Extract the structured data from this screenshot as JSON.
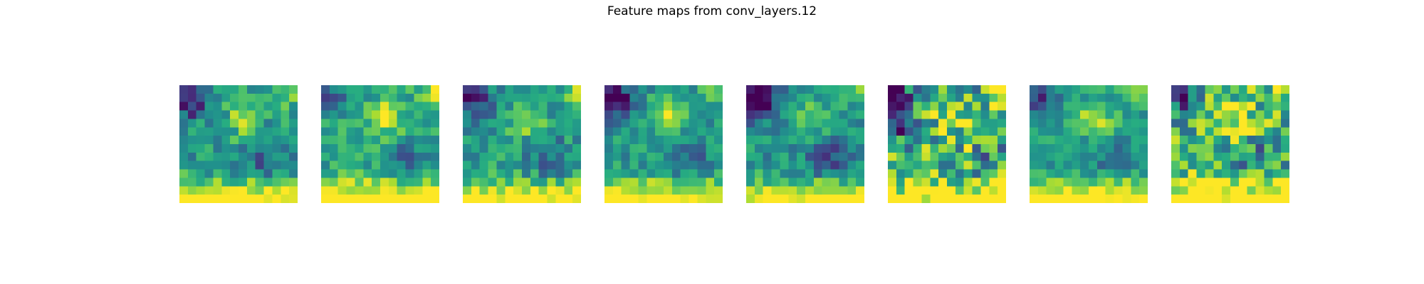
{
  "figure": {
    "title": "Feature maps from conv_layers.12"
  },
  "chart_data": {
    "type": "heatmap",
    "title": "Feature maps from conv_layers.12",
    "colormap": "viridis",
    "value_range": [
      0,
      1
    ],
    "axes_visible": false,
    "grid_size": [
      14,
      14
    ],
    "panel_count": 8,
    "notes_on_values": "values are estimated normalized activations per cell (0 = dark purple, 1 = yellow)"
  }
}
